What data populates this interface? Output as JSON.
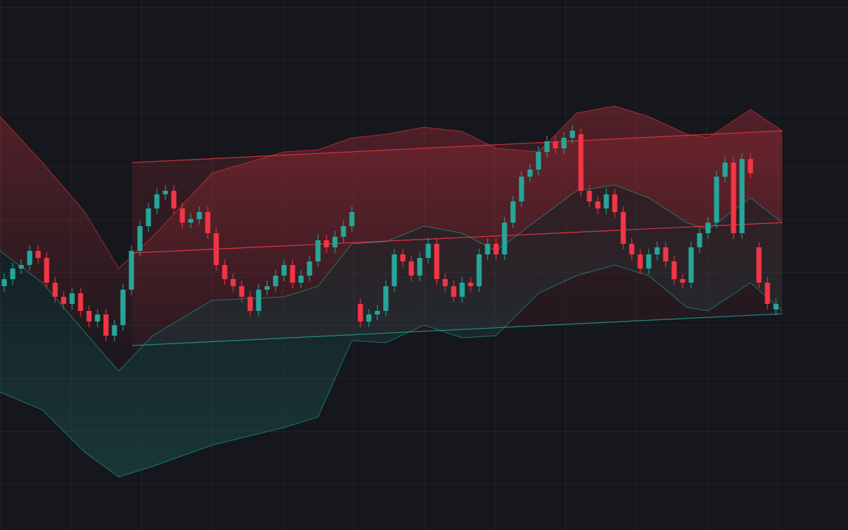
{
  "chart_data": {
    "type": "candlestick",
    "xlim": [
      -0.5,
      99.5
    ],
    "ylim": [
      0,
      750
    ],
    "up_color": "#26a69a",
    "down_color": "#f23645",
    "open": [
      345,
      355,
      370,
      375,
      395,
      385,
      350,
      330,
      320,
      335,
      310,
      295,
      305,
      275,
      290,
      340,
      395,
      430,
      455,
      475,
      480,
      455,
      435,
      440,
      450,
      420,
      375,
      355,
      345,
      330,
      310,
      340,
      345,
      360,
      375,
      350,
      360,
      380,
      410,
      400,
      415,
      430,
      320,
      295,
      305,
      310,
      345,
      390,
      380,
      360,
      385,
      405,
      355,
      345,
      330,
      350,
      345,
      390,
      405,
      390,
      435,
      465,
      500,
      510,
      535,
      550,
      540,
      555,
      560,
      480,
      465,
      455,
      475,
      450,
      405,
      390,
      370,
      390,
      400,
      380,
      355,
      350,
      400,
      420,
      435,
      500,
      520,
      420,
      525,
      400,
      350,
      312
    ],
    "high": [
      363,
      378,
      383,
      403,
      403,
      393,
      358,
      338,
      343,
      343,
      318,
      313,
      313,
      298,
      348,
      403,
      438,
      463,
      483,
      488,
      488,
      463,
      448,
      458,
      458,
      428,
      383,
      363,
      353,
      338,
      348,
      353,
      368,
      383,
      383,
      368,
      388,
      418,
      418,
      423,
      438,
      458,
      328,
      313,
      318,
      353,
      398,
      398,
      388,
      393,
      413,
      413,
      363,
      353,
      358,
      358,
      398,
      413,
      413,
      443,
      473,
      508,
      518,
      543,
      558,
      558,
      563,
      573,
      568,
      488,
      473,
      483,
      483,
      458,
      413,
      398,
      398,
      408,
      408,
      388,
      363,
      408,
      428,
      443,
      508,
      528,
      528,
      533,
      533,
      408,
      358,
      328
    ],
    "low": [
      337,
      347,
      362,
      367,
      377,
      342,
      322,
      312,
      312,
      302,
      287,
      287,
      267,
      267,
      282,
      332,
      387,
      422,
      447,
      467,
      447,
      427,
      427,
      432,
      412,
      367,
      347,
      337,
      322,
      302,
      302,
      332,
      337,
      352,
      342,
      342,
      352,
      372,
      392,
      392,
      407,
      422,
      287,
      287,
      297,
      302,
      337,
      372,
      352,
      352,
      377,
      347,
      337,
      322,
      322,
      337,
      337,
      382,
      382,
      382,
      427,
      457,
      492,
      502,
      527,
      532,
      532,
      547,
      472,
      457,
      447,
      447,
      442,
      397,
      382,
      362,
      362,
      382,
      372,
      347,
      342,
      342,
      392,
      412,
      427,
      492,
      412,
      412,
      497,
      342,
      312,
      304
    ],
    "close": [
      355,
      370,
      375,
      395,
      385,
      350,
      330,
      320,
      335,
      310,
      295,
      305,
      275,
      290,
      340,
      395,
      430,
      455,
      475,
      480,
      455,
      435,
      440,
      450,
      420,
      375,
      355,
      345,
      330,
      310,
      340,
      345,
      360,
      375,
      350,
      360,
      380,
      410,
      400,
      415,
      430,
      450,
      295,
      305,
      310,
      345,
      390,
      380,
      360,
      385,
      405,
      355,
      345,
      330,
      350,
      345,
      390,
      405,
      390,
      435,
      465,
      500,
      510,
      535,
      550,
      540,
      555,
      565,
      480,
      465,
      455,
      475,
      450,
      405,
      390,
      370,
      390,
      400,
      380,
      355,
      350,
      400,
      420,
      435,
      500,
      520,
      420,
      525,
      505,
      350,
      320,
      320
    ],
    "bands": {
      "x": [
        -0.5,
        4.5,
        9.5,
        13.5,
        17.5,
        24.5,
        33,
        37,
        41,
        45,
        49.5,
        54,
        58,
        63,
        67.5,
        72,
        76,
        80.5,
        83,
        88,
        91.75
      ],
      "upper": [
        585,
        520,
        450,
        370,
        415,
        505,
        535,
        538,
        555,
        560,
        570,
        564,
        540,
        535,
        590,
        600,
        585,
        560,
        555,
        595,
        565
      ],
      "middle": [
        395,
        350,
        280,
        225,
        275,
        325,
        330,
        345,
        405,
        408,
        430,
        420,
        395,
        440,
        480,
        488,
        470,
        435,
        425,
        470,
        435
      ],
      "lower": [
        195,
        170,
        110,
        75,
        90,
        120,
        145,
        160,
        268,
        265,
        290,
        272,
        275,
        335,
        360,
        375,
        360,
        315,
        310,
        350,
        310
      ],
      "upper_color": "#f23645",
      "lower_color": "#26a69a"
    },
    "channel": {
      "x": [
        15.08,
        91.75
      ],
      "upper": [
        520,
        565
      ],
      "middle": [
        392,
        435
      ],
      "lower": [
        261,
        306
      ]
    }
  }
}
